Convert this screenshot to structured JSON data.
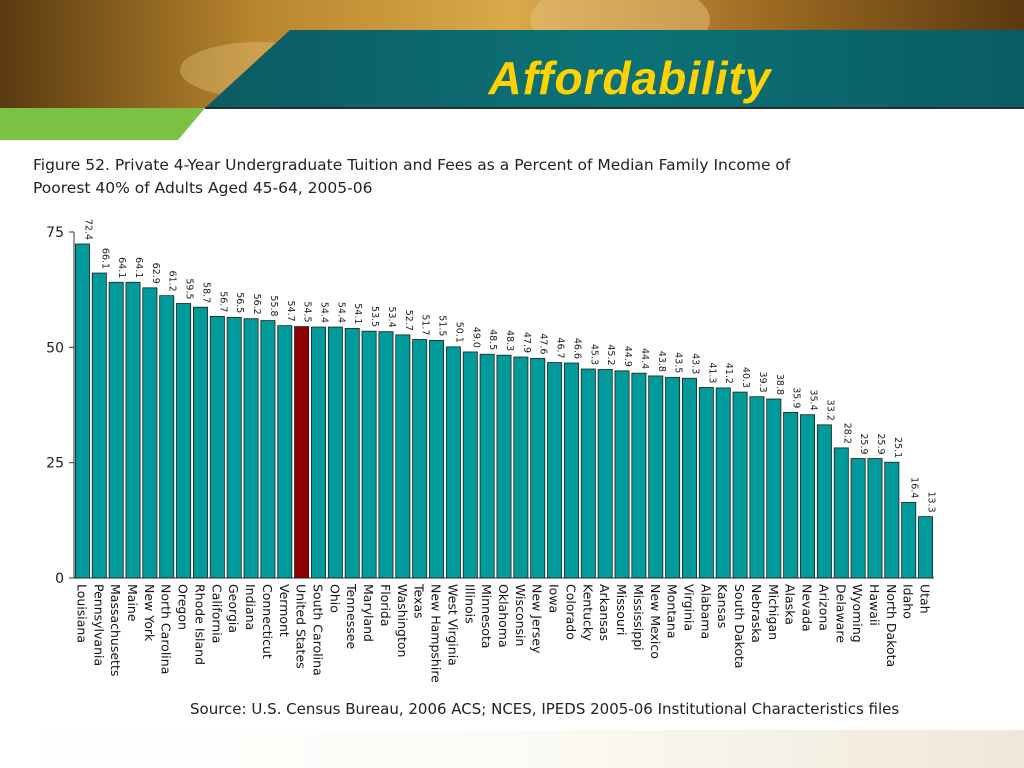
{
  "slide": {
    "title": "Affordability",
    "figure_title_line1": "Figure 52. Private 4-Year Undergraduate Tuition and Fees as a Percent of Median Family Income of",
    "figure_title_line2": "Poorest 40% of Adults Aged 45-64, 2005-06",
    "source": "Source: U.S. Census Bureau, 2006 ACS; NCES, IPEDS 2005-06 Institutional Characteristics files"
  },
  "colors": {
    "bar": "#009a9a",
    "highlight": "#8b0000",
    "banner_teal": "#0b6e73",
    "banner_green": "#7bc143",
    "title": "#ffd200"
  },
  "chart_data": {
    "type": "bar",
    "title": "Figure 52. Private 4-Year Undergraduate Tuition and Fees as a Percent of Median Family Income of Poorest 40% of Adults Aged 45-64, 2005-06",
    "xlabel": "",
    "ylabel": "",
    "ylim": [
      0,
      75
    ],
    "yticks": [
      0,
      25,
      50,
      75
    ],
    "highlight_category": "United States",
    "categories": [
      "Louisiana",
      "Pennsylvania",
      "Massachusetts",
      "Maine",
      "New York",
      "North Carolina",
      "Oregon",
      "Rhode Island",
      "California",
      "Georgia",
      "Indiana",
      "Connecticut",
      "Vermont",
      "United States",
      "South Carolina",
      "Ohio",
      "Tennessee",
      "Maryland",
      "Florida",
      "Washington",
      "Texas",
      "New Hampshire",
      "West Virginia",
      "Illinois",
      "Minnesota",
      "Oklahoma",
      "Wisconsin",
      "New Jersey",
      "Iowa",
      "Colorado",
      "Kentucky",
      "Arkansas",
      "Missouri",
      "Mississippi",
      "New Mexico",
      "Montana",
      "Virginia",
      "Alabama",
      "Kansas",
      "South Dakota",
      "Nebraska",
      "Michigan",
      "Alaska",
      "Nevada",
      "Arizona",
      "Delaware",
      "Wyoming",
      "Hawaii",
      "North Dakota",
      "Idaho",
      "Utah"
    ],
    "values": [
      72.4,
      66.1,
      64.1,
      64.1,
      62.9,
      61.2,
      59.5,
      58.7,
      56.7,
      56.5,
      56.2,
      55.8,
      54.7,
      54.5,
      54.4,
      54.4,
      54.1,
      53.5,
      53.4,
      52.7,
      51.7,
      51.5,
      50.1,
      49.0,
      48.5,
      48.3,
      47.9,
      47.6,
      46.7,
      46.6,
      45.3,
      45.2,
      44.9,
      44.4,
      43.8,
      43.5,
      43.3,
      41.3,
      41.2,
      40.3,
      39.3,
      38.8,
      35.9,
      35.4,
      33.2,
      28.2,
      25.9,
      25.9,
      25.1,
      16.4,
      13.3
    ],
    "labels": [
      "72.4",
      "66.1",
      "64.1",
      "64.1",
      "62.9",
      "61.2",
      "59.5",
      "58.7",
      "56.7",
      "56.5",
      "56.2",
      "55.8",
      "54.7",
      "54.5",
      "54.4",
      "54.4",
      "54.1",
      "53.5",
      "53.4",
      "52.7",
      "51.7",
      "51.5",
      "50.1",
      "49.0",
      "48.5",
      "48.3",
      "47.9",
      "47.6",
      "46.7",
      "46.6",
      "45.3",
      "45.2",
      "44.9",
      "44.4",
      "43.8",
      "43.5",
      "43.3",
      "41.3",
      "41.2",
      "40.3",
      "39.3",
      "38.8",
      "35.9",
      "35.4",
      "33.2",
      "28.2",
      "25.9",
      "25.9",
      "25.1",
      "16.4",
      "13.3"
    ]
  }
}
